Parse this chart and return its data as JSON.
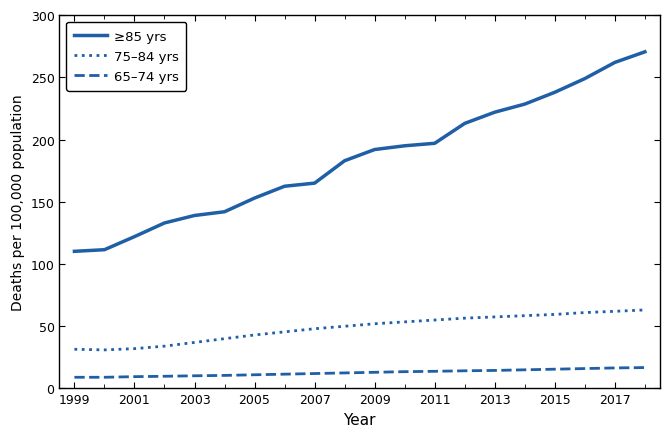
{
  "years": [
    1999,
    2000,
    2001,
    2002,
    2003,
    2004,
    2005,
    2006,
    2007,
    2008,
    2009,
    2010,
    2011,
    2012,
    2013,
    2014,
    2015,
    2016,
    2017,
    2018
  ],
  "ge85": [
    110.2,
    111.5,
    122.0,
    133.0,
    139.0,
    142.0,
    153.0,
    162.5,
    165.0,
    183.0,
    192.0,
    195.0,
    197.0,
    213.0,
    222.0,
    228.5,
    238.0,
    249.0,
    262.0,
    270.5
  ],
  "y7584": [
    31.5,
    31.0,
    32.0,
    34.0,
    37.0,
    40.0,
    43.0,
    45.5,
    48.0,
    50.0,
    52.0,
    53.5,
    55.0,
    56.5,
    57.5,
    58.5,
    59.5,
    61.0,
    62.0,
    63.1
  ],
  "y6574": [
    9.0,
    9.0,
    9.5,
    9.8,
    10.2,
    10.5,
    11.0,
    11.5,
    12.0,
    12.5,
    13.0,
    13.5,
    13.8,
    14.2,
    14.5,
    15.0,
    15.5,
    16.0,
    16.5,
    16.8
  ],
  "color": "#1f5fa6",
  "ylim": [
    0,
    300
  ],
  "yticks": [
    0,
    50,
    100,
    150,
    200,
    250,
    300
  ],
  "xlim": [
    1998.5,
    2018.5
  ],
  "xticks": [
    1999,
    2001,
    2003,
    2005,
    2007,
    2009,
    2011,
    2013,
    2015,
    2017
  ],
  "xticks_minor": [
    2000,
    2002,
    2004,
    2006,
    2008,
    2010,
    2012,
    2014,
    2016,
    2018
  ],
  "ylabel": "Deaths per 100,000 population",
  "xlabel": "Year",
  "legend_ge85": "≥85 yrs",
  "legend_7584": "75–84 yrs",
  "legend_6574": "65–74 yrs"
}
